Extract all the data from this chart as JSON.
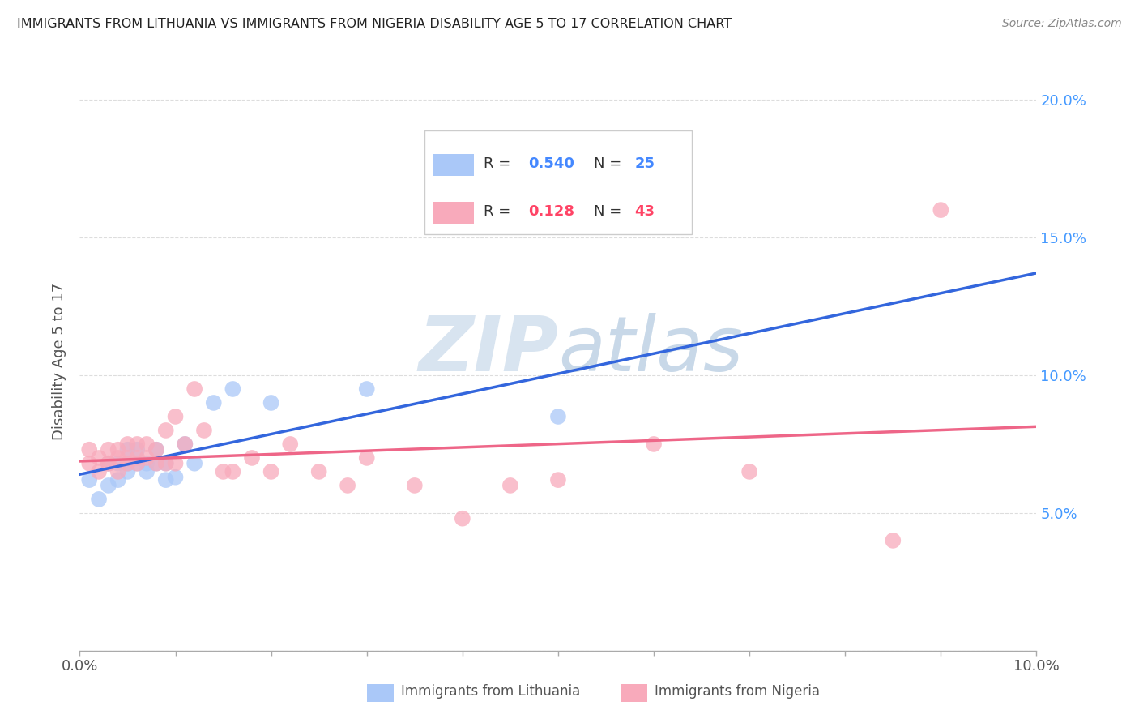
{
  "title": "IMMIGRANTS FROM LITHUANIA VS IMMIGRANTS FROM NIGERIA DISABILITY AGE 5 TO 17 CORRELATION CHART",
  "source": "Source: ZipAtlas.com",
  "ylabel": "Disability Age 5 to 17",
  "xlim": [
    0.0,
    0.1
  ],
  "ylim": [
    0.0,
    0.21
  ],
  "lithuania_color": "#aac8f8",
  "nigeria_color": "#f8aabb",
  "lithuania_line_color": "#3366dd",
  "nigeria_line_color": "#ee6688",
  "dash_color": "#bbbbbb",
  "watermark": "ZIPatlas",
  "watermark_color": "#d8e4f0",
  "legend_box_color": "#cccccc",
  "right_tick_color": "#4499ff",
  "ylabel_color": "#555555",
  "title_color": "#222222",
  "source_color": "#888888",
  "bottom_label_color": "#555555",
  "lithuania_x": [
    0.001,
    0.002,
    0.003,
    0.003,
    0.004,
    0.004,
    0.005,
    0.005,
    0.005,
    0.006,
    0.006,
    0.007,
    0.007,
    0.008,
    0.008,
    0.009,
    0.009,
    0.01,
    0.011,
    0.012,
    0.014,
    0.016,
    0.02,
    0.03,
    0.05
  ],
  "lithuania_y": [
    0.062,
    0.055,
    0.06,
    0.068,
    0.062,
    0.068,
    0.065,
    0.068,
    0.073,
    0.068,
    0.073,
    0.068,
    0.065,
    0.068,
    0.073,
    0.062,
    0.068,
    0.063,
    0.075,
    0.068,
    0.09,
    0.095,
    0.09,
    0.095,
    0.085
  ],
  "nigeria_x": [
    0.001,
    0.001,
    0.002,
    0.002,
    0.003,
    0.003,
    0.003,
    0.004,
    0.004,
    0.004,
    0.005,
    0.005,
    0.005,
    0.006,
    0.006,
    0.006,
    0.007,
    0.007,
    0.008,
    0.008,
    0.009,
    0.009,
    0.01,
    0.01,
    0.011,
    0.012,
    0.013,
    0.015,
    0.016,
    0.018,
    0.02,
    0.022,
    0.025,
    0.028,
    0.03,
    0.035,
    0.04,
    0.045,
    0.05,
    0.06,
    0.07,
    0.085,
    0.09
  ],
  "nigeria_y": [
    0.068,
    0.073,
    0.065,
    0.07,
    0.068,
    0.073,
    0.068,
    0.065,
    0.073,
    0.07,
    0.068,
    0.075,
    0.07,
    0.068,
    0.075,
    0.07,
    0.075,
    0.07,
    0.068,
    0.073,
    0.08,
    0.068,
    0.085,
    0.068,
    0.075,
    0.095,
    0.08,
    0.065,
    0.065,
    0.07,
    0.065,
    0.075,
    0.065,
    0.06,
    0.07,
    0.06,
    0.048,
    0.06,
    0.062,
    0.075,
    0.065,
    0.04,
    0.16
  ],
  "lith_R": "0.540",
  "lith_N": "25",
  "nig_R": "0.128",
  "nig_N": "43",
  "legend_R_color_blue": "#4488ff",
  "legend_N_color_blue": "#4488ff",
  "legend_R_color_pink": "#ff4466",
  "legend_N_color_pink": "#ff4466"
}
